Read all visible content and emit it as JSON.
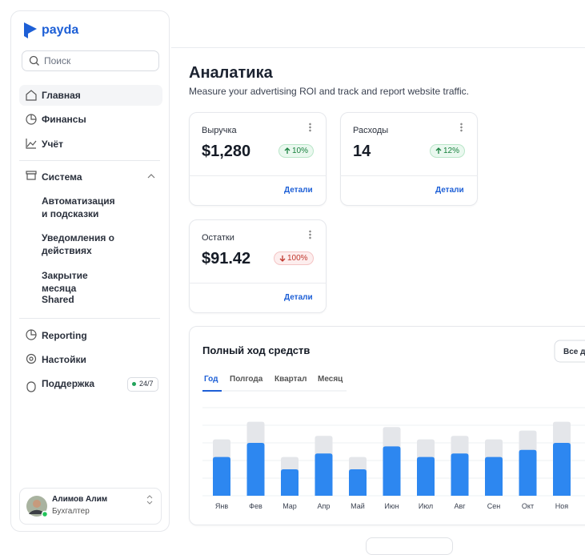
{
  "sidebar": {
    "brand": "payda",
    "search_placeholder": "Поиск",
    "nav": [
      "Главная",
      "Финансы",
      "Учёт"
    ],
    "system": {
      "label": "Система",
      "items": [
        "Автоматизация и подсказки",
        "Уведомления о действиях",
        "Закрытие месяца",
        "Shared"
      ]
    },
    "nav2": [
      "Reporting",
      "Настойки",
      "Поддержка"
    ],
    "support_badge": "24/7",
    "user": {
      "name": "Алимов Алим",
      "role": "Бухгалтер"
    }
  },
  "header": {
    "title": "Аналатика",
    "subtitle": "Measure your advertising ROI and track and report website traffic."
  },
  "cards": [
    {
      "label": "Выручка",
      "value": "$1,280",
      "change": "10%",
      "link": "Детали"
    },
    {
      "label": "Расходы",
      "value": "14",
      "change": "12%",
      "link": "Детали"
    },
    {
      "label": "Остатки",
      "value": "$91.42",
      "change": "100%",
      "link": "Детали"
    }
  ],
  "chart_card": {
    "tabs": [
      "Год",
      "Полгода",
      "Квартал",
      "Месяц"
    ],
    "button": "Все даты"
  },
  "chart_data": {
    "type": "bar",
    "title": "Полный ход средств",
    "categories": [
      "Янв",
      "Фев",
      "Мар",
      "Апр",
      "Май",
      "Июн",
      "Июл",
      "Авг",
      "Сен",
      "Окт",
      "Ноя"
    ],
    "series": [
      {
        "color": "#e4e6ea",
        "values": [
          3.2,
          4.2,
          2.2,
          3.4,
          2.2,
          3.9,
          3.2,
          3.4,
          3.2,
          3.7,
          4.2
        ]
      },
      {
        "color": "#2d87f0",
        "values": [
          2.2,
          3.0,
          1.5,
          2.4,
          1.5,
          2.8,
          2.2,
          2.4,
          2.2,
          2.6,
          3.0
        ]
      }
    ],
    "ylim": [
      0,
      5
    ]
  }
}
